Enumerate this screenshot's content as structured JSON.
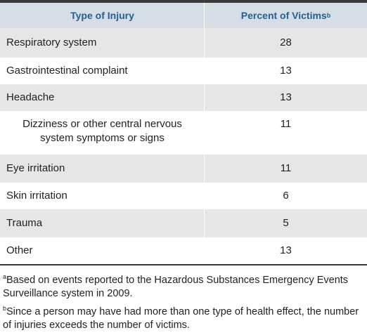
{
  "table": {
    "header": [
      {
        "text": "Type of Injury"
      },
      {
        "text": "Percent of Victims",
        "sup": "b"
      }
    ],
    "rows": [
      [
        "Respiratory system",
        28
      ],
      [
        "Gastrointestinal complaint",
        13
      ],
      [
        "Headache",
        13
      ],
      [
        "Dizziness or other central nervous system symptoms or signs",
        11
      ],
      [
        "Eye irritation",
        11
      ],
      [
        "Skin irritation",
        6
      ],
      [
        "Trauma",
        5
      ],
      [
        "Other",
        13
      ]
    ]
  },
  "footnotes": [
    {
      "mark": "a",
      "text": "Based on events reported to the Hazardous Substances Emergency Events Surveillance system in 2009."
    },
    {
      "mark": "b",
      "text": "Since a person may have had more than one type of health effect, the number of injuries exceeds the number of victims."
    }
  ]
}
